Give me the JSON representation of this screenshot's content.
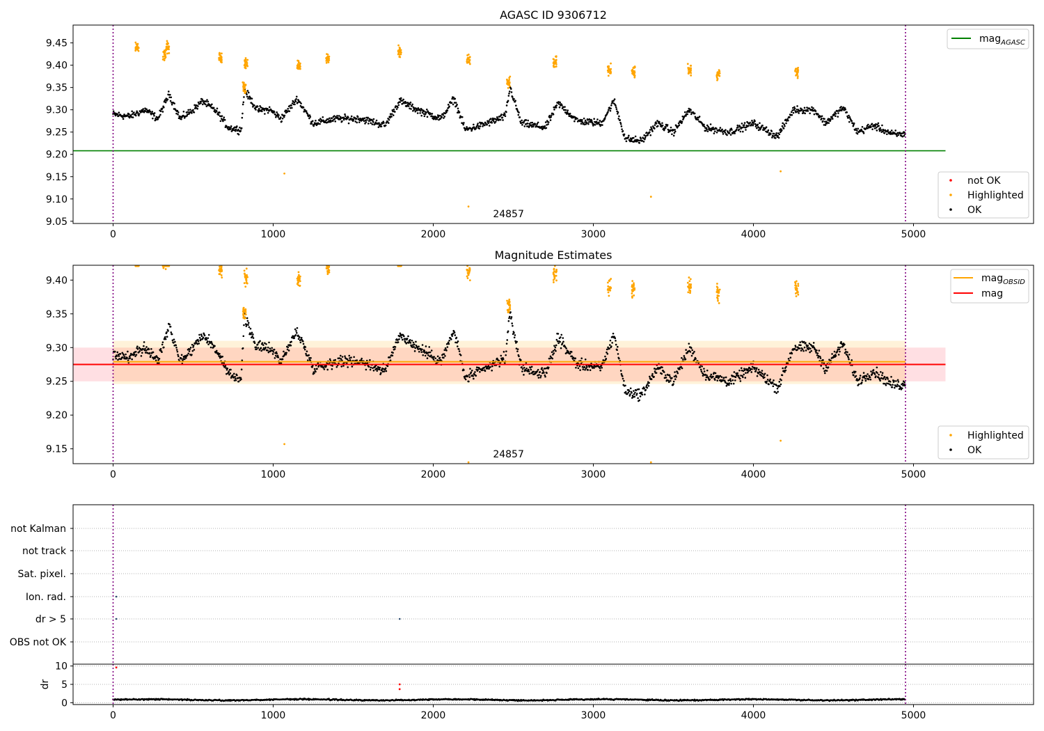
{
  "chart_data": [
    {
      "type": "scatter",
      "title": "AGASC ID 9306712",
      "xlim": [
        -250,
        5750
      ],
      "ylim": [
        9.045,
        9.49
      ],
      "xticks": [
        0,
        1000,
        2000,
        3000,
        4000,
        5000
      ],
      "yticks": [
        9.05,
        9.1,
        9.15,
        9.2,
        9.25,
        9.3,
        9.35,
        9.4,
        9.45
      ],
      "ytick_labels": [
        "9.05",
        "9.10",
        "9.15",
        "9.20",
        "9.25",
        "9.30",
        "9.35",
        "9.40",
        "9.45"
      ],
      "obsid_label": {
        "text": "24857",
        "x": 2470
      },
      "vlines": [
        0,
        4950
      ],
      "hlines": [
        {
          "name": "mag",
          "sub": "AGASC",
          "y": 9.208,
          "x0": -250,
          "x1": 5200,
          "color": "#008000"
        }
      ],
      "legend_lines": [
        {
          "name": "mag",
          "sub": "AGASC",
          "color": "#008000"
        }
      ],
      "legend_points": [
        {
          "name": "not OK",
          "color": "#ff0000"
        },
        {
          "name": "Highlighted",
          "color": "#ffa500"
        },
        {
          "name": "OK",
          "color": "#000000"
        }
      ],
      "highlighted": [
        {
          "x": 150,
          "y": 9.44
        },
        {
          "x": 320,
          "y": 9.425
        },
        {
          "x": 340,
          "y": 9.44
        },
        {
          "x": 670,
          "y": 9.415
        },
        {
          "x": 830,
          "y": 9.405
        },
        {
          "x": 820,
          "y": 9.35
        },
        {
          "x": 1160,
          "y": 9.4
        },
        {
          "x": 1340,
          "y": 9.415
        },
        {
          "x": 1790,
          "y": 9.43
        },
        {
          "x": 2220,
          "y": 9.41
        },
        {
          "x": 2470,
          "y": 9.36
        },
        {
          "x": 2760,
          "y": 9.41
        },
        {
          "x": 3100,
          "y": 9.39
        },
        {
          "x": 3250,
          "y": 9.385
        },
        {
          "x": 3600,
          "y": 9.39
        },
        {
          "x": 3780,
          "y": 9.38
        },
        {
          "x": 4270,
          "y": 9.385
        },
        {
          "x": 1070,
          "y": 9.157
        },
        {
          "x": 2220,
          "y": 9.083
        },
        {
          "x": 3360,
          "y": 9.105
        },
        {
          "x": 4170,
          "y": 9.162
        }
      ],
      "ok_segments": [
        {
          "x": 0,
          "y": 9.29
        },
        {
          "x": 100,
          "y": 9.285
        },
        {
          "x": 200,
          "y": 9.3
        },
        {
          "x": 280,
          "y": 9.28
        },
        {
          "x": 350,
          "y": 9.335
        },
        {
          "x": 420,
          "y": 9.28
        },
        {
          "x": 500,
          "y": 9.3
        },
        {
          "x": 560,
          "y": 9.32
        },
        {
          "x": 650,
          "y": 9.295
        },
        {
          "x": 720,
          "y": 9.26
        },
        {
          "x": 800,
          "y": 9.255
        },
        {
          "x": 820,
          "y": 9.345
        },
        {
          "x": 900,
          "y": 9.3
        },
        {
          "x": 980,
          "y": 9.3
        },
        {
          "x": 1050,
          "y": 9.28
        },
        {
          "x": 1150,
          "y": 9.325
        },
        {
          "x": 1250,
          "y": 9.27
        },
        {
          "x": 1400,
          "y": 9.28
        },
        {
          "x": 1550,
          "y": 9.28
        },
        {
          "x": 1700,
          "y": 9.265
        },
        {
          "x": 1790,
          "y": 9.32
        },
        {
          "x": 1900,
          "y": 9.3
        },
        {
          "x": 2050,
          "y": 9.28
        },
        {
          "x": 2130,
          "y": 9.325
        },
        {
          "x": 2200,
          "y": 9.255
        },
        {
          "x": 2300,
          "y": 9.265
        },
        {
          "x": 2450,
          "y": 9.285
        },
        {
          "x": 2480,
          "y": 9.35
        },
        {
          "x": 2550,
          "y": 9.27
        },
        {
          "x": 2700,
          "y": 9.26
        },
        {
          "x": 2780,
          "y": 9.315
        },
        {
          "x": 2900,
          "y": 9.275
        },
        {
          "x": 3050,
          "y": 9.27
        },
        {
          "x": 3130,
          "y": 9.32
        },
        {
          "x": 3200,
          "y": 9.235
        },
        {
          "x": 3300,
          "y": 9.23
        },
        {
          "x": 3400,
          "y": 9.27
        },
        {
          "x": 3500,
          "y": 9.25
        },
        {
          "x": 3600,
          "y": 9.3
        },
        {
          "x": 3700,
          "y": 9.26
        },
        {
          "x": 3850,
          "y": 9.25
        },
        {
          "x": 4000,
          "y": 9.27
        },
        {
          "x": 4150,
          "y": 9.24
        },
        {
          "x": 4250,
          "y": 9.3
        },
        {
          "x": 4380,
          "y": 9.3
        },
        {
          "x": 4450,
          "y": 9.27
        },
        {
          "x": 4560,
          "y": 9.305
        },
        {
          "x": 4650,
          "y": 9.25
        },
        {
          "x": 4750,
          "y": 9.265
        },
        {
          "x": 4870,
          "y": 9.245
        },
        {
          "x": 4950,
          "y": 9.245
        }
      ]
    },
    {
      "type": "scatter",
      "title": "Magnitude Estimates",
      "xlim": [
        -250,
        5750
      ],
      "ylim": [
        9.128,
        9.422
      ],
      "xticks": [
        0,
        1000,
        2000,
        3000,
        4000,
        5000
      ],
      "yticks": [
        9.15,
        9.2,
        9.25,
        9.3,
        9.35,
        9.4
      ],
      "ytick_labels": [
        "9.15",
        "9.20",
        "9.25",
        "9.30",
        "9.35",
        "9.40"
      ],
      "obsid_label": {
        "text": "24857",
        "x": 2470
      },
      "vlines": [
        0,
        4950
      ],
      "bands": [
        {
          "y0": 9.25,
          "y1": 9.3,
          "color": "#ffc0c8",
          "alpha": 0.5
        },
        {
          "y0": 9.246,
          "y1": 9.31,
          "color": "#ffa500",
          "alpha": 0.15
        }
      ],
      "hlines": [
        {
          "name": "mag",
          "sub": "OBSID",
          "y": 9.279,
          "x0": 0,
          "x1": 4950,
          "color": "#ffa500"
        },
        {
          "name": "mag",
          "sub": "",
          "y": 9.275,
          "x0": -250,
          "x1": 5200,
          "color": "#ff0000"
        }
      ],
      "legend_lines": [
        {
          "name": "mag",
          "sub": "OBSID",
          "color": "#ffa500"
        },
        {
          "name": "mag",
          "sub": "",
          "color": "#ff0000"
        }
      ],
      "legend_points": [
        {
          "name": "Highlighted",
          "color": "#ffa500"
        },
        {
          "name": "OK",
          "color": "#000000"
        }
      ]
    },
    {
      "type": "scatter",
      "title": "",
      "flag_rows": [
        "not Kalman",
        "not track",
        "Sat. pixel.",
        "Ion. rad.",
        "dr > 5",
        "OBS not OK"
      ],
      "flag_points": [
        {
          "row": "Ion. rad.",
          "x": 20
        },
        {
          "row": "dr > 5",
          "x": 20
        },
        {
          "row": "dr > 5",
          "x": 1790
        }
      ],
      "xlim": [
        -250,
        5750
      ],
      "xticks": [
        0,
        1000,
        2000,
        3000,
        4000,
        5000
      ],
      "vlines": [
        0,
        4950
      ]
    },
    {
      "type": "scatter",
      "title": "",
      "ylabel": "dr",
      "xlim": [
        -250,
        5750
      ],
      "ylim": [
        -0.5,
        10.5
      ],
      "yticks": [
        0,
        5,
        10
      ],
      "ytick_labels": [
        "0",
        "5",
        "10"
      ],
      "xticks": [
        0,
        1000,
        2000,
        3000,
        4000,
        5000
      ],
      "xtick_labels": [
        "0",
        "1000",
        "2000",
        "3000",
        "4000",
        "5000"
      ],
      "vlines": [
        0,
        4950
      ],
      "red_points": [
        {
          "x": 20,
          "y": 9.6
        },
        {
          "x": 1790,
          "y": 5.0
        },
        {
          "x": 1790,
          "y": 3.7
        }
      ],
      "baseline": {
        "y_mean": 0.8,
        "y_spread": 0.7
      }
    }
  ]
}
